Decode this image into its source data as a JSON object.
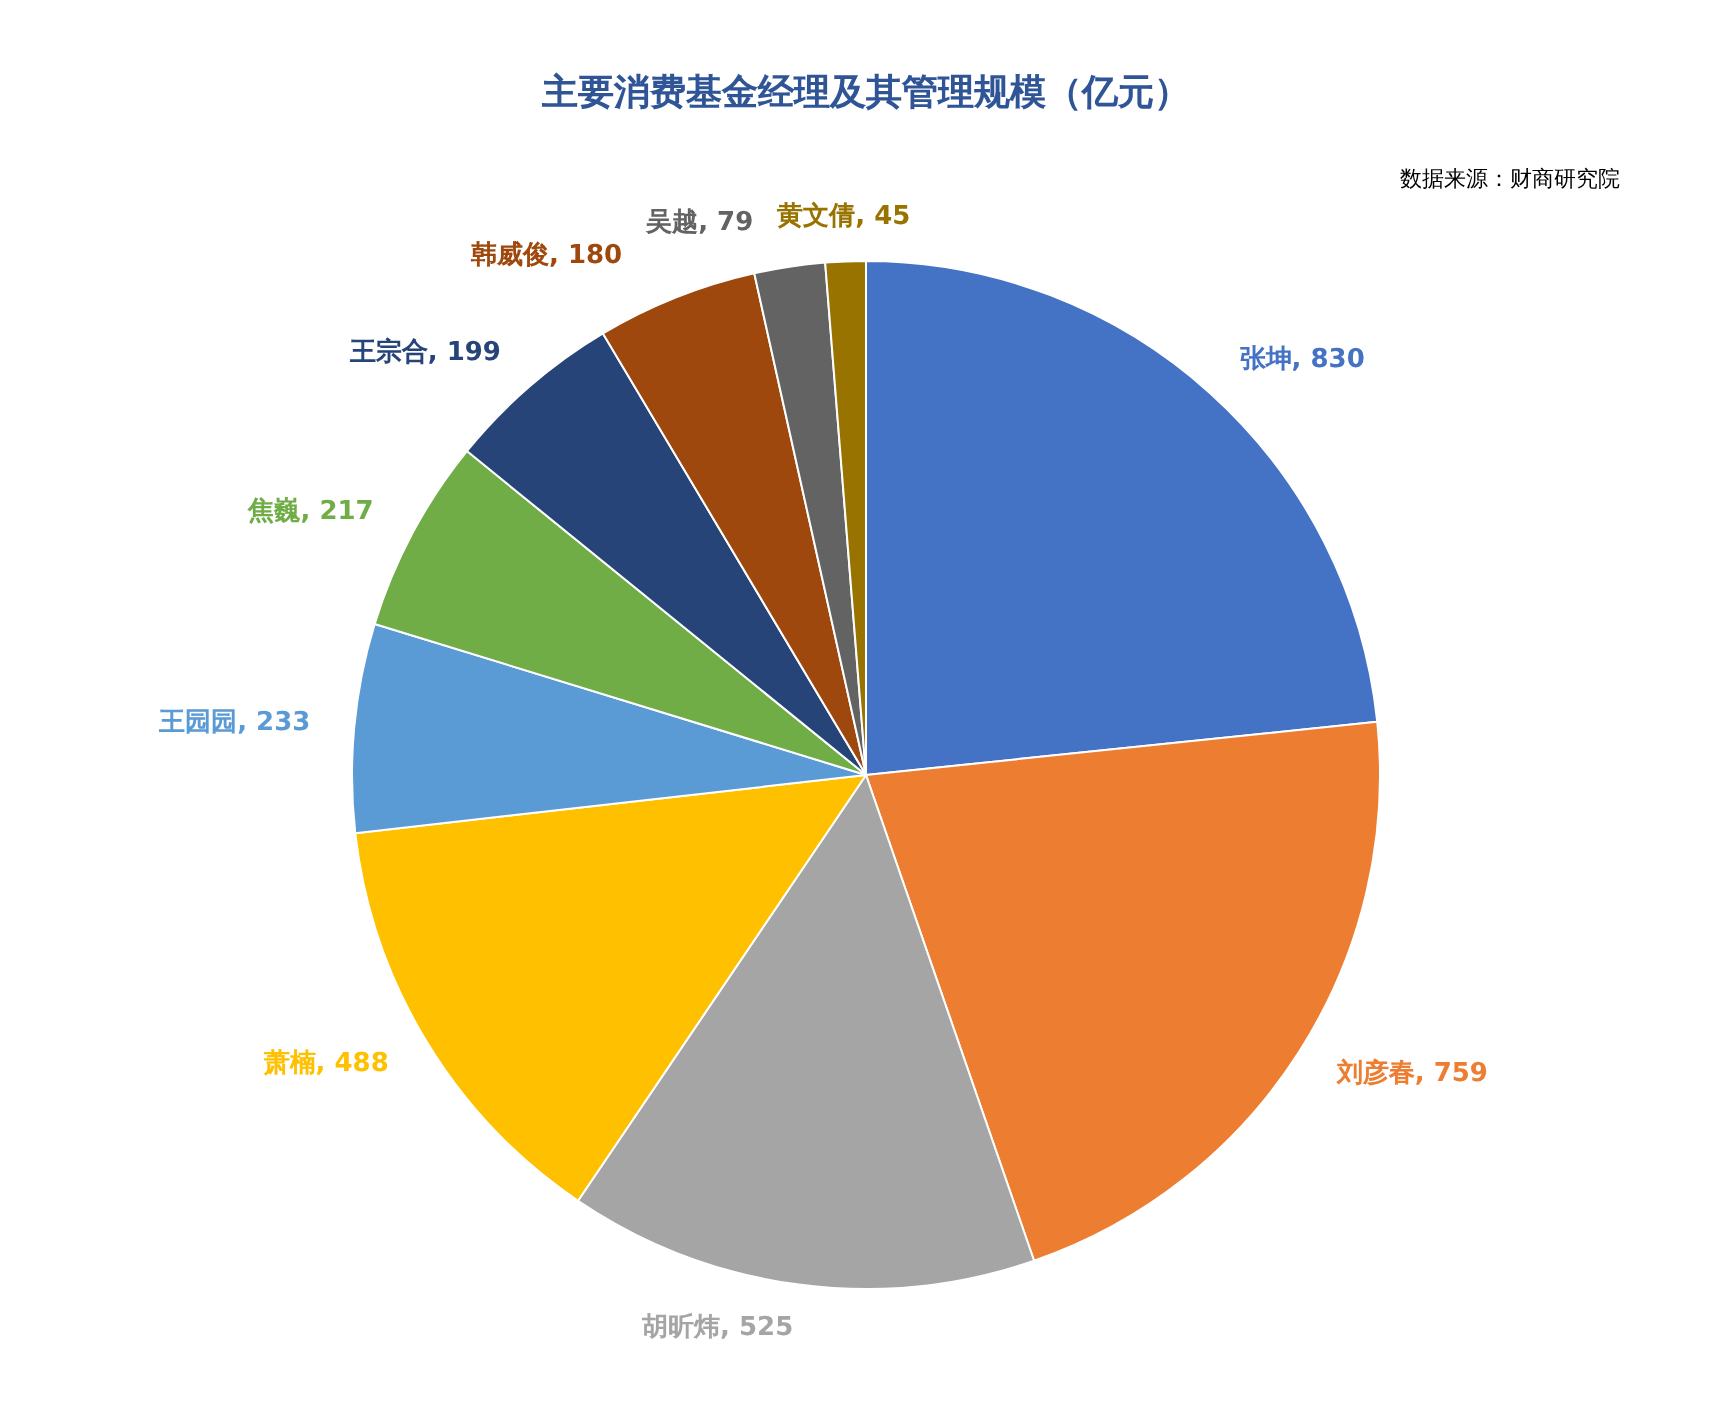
{
  "chart_data": {
    "type": "pie",
    "title": "主要消费基金经理及其管理规模（亿元）",
    "categories": [
      "张坤",
      "刘彦春",
      "胡昕炜",
      "萧楠",
      "王园园",
      "焦巍",
      "王宗合",
      "韩威俊",
      "吴越",
      "黄文倩"
    ],
    "values": [
      830,
      759,
      525,
      488,
      233,
      217,
      199,
      180,
      79,
      45
    ],
    "colors": [
      "#4472c4",
      "#ed7d31",
      "#a5a5a5",
      "#ffc000",
      "#5b9bd5",
      "#70ad47",
      "#264478",
      "#9e480e",
      "#636363",
      "#997300"
    ],
    "value_labels": [
      ", 830",
      ", 759",
      ", 525",
      ", 488",
      ", 233",
      ", 217",
      ", 199",
      ", 180",
      ", 79",
      ", 45"
    ],
    "annotations": [
      "数据来源：财商研究院"
    ]
  }
}
